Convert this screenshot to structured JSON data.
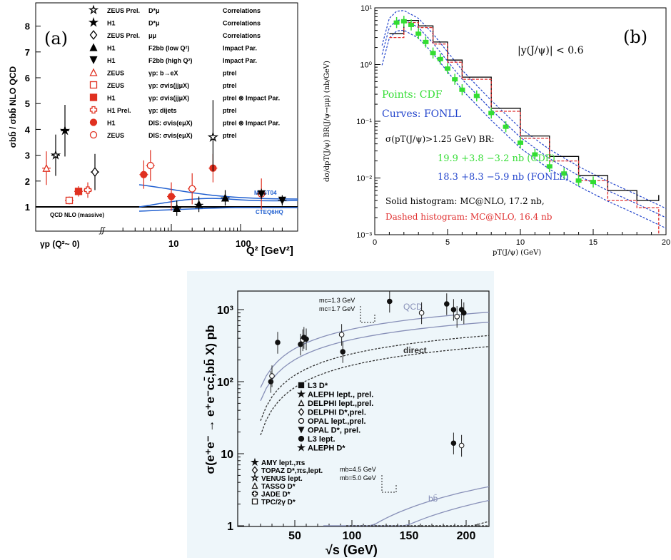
{
  "panel_a": {
    "tag": "(a)",
    "ylabel": "σbb̄ / σbb̄ NLO QCD",
    "xlabel": "Q² [GeV²]",
    "gp_label": "γp (Q²~ 0)",
    "yticks": [
      "1",
      "2",
      "3",
      "4",
      "5",
      "6",
      "7",
      "8"
    ],
    "xticks": [
      "10",
      "100"
    ],
    "curve_labels": {
      "mrst": "MRST04",
      "cteq": "CTEQ6HQ",
      "nlo": "QCD NLO (massive)"
    },
    "legend": [
      {
        "exp": "ZEUS Prel.",
        "chan": "D*μ",
        "method": "Correlations",
        "marker": "star-open",
        "color": "#000000"
      },
      {
        "exp": "H1",
        "chan": "D*μ",
        "method": "Correlations",
        "marker": "star",
        "color": "#000000"
      },
      {
        "exp": "ZEUS Prel.",
        "chan": "μμ",
        "method": "Correlations",
        "marker": "diamond-open",
        "color": "#000000"
      },
      {
        "exp": "H1",
        "chan": "F2bb (low Q²)",
        "method": "Impact Par.",
        "marker": "triangle",
        "color": "#000000"
      },
      {
        "exp": "H1",
        "chan": "F2bb (high Q²)",
        "method": "Impact Par.",
        "marker": "triangle-down",
        "color": "#000000"
      },
      {
        "exp": "ZEUS",
        "chan": "γp: b→eX",
        "method": "ptrel",
        "marker": "triangle-open",
        "color": "#e03020"
      },
      {
        "exp": "ZEUS",
        "chan": "γp: σvis(jjμX)",
        "method": "ptrel",
        "marker": "square-open",
        "color": "#e03020"
      },
      {
        "exp": "H1",
        "chan": "γp: σvis(jjμX)",
        "method": "ptrel ⊗ Impact Par.",
        "marker": "square",
        "color": "#e03020"
      },
      {
        "exp": "H1 Prel.",
        "chan": "γp: dijets",
        "method": "ptrel",
        "marker": "cross-open",
        "color": "#e03020"
      },
      {
        "exp": "H1",
        "chan": "DIS: σvis(eμX)",
        "method": "ptrel ⊗ Impact Par.",
        "marker": "circle",
        "color": "#e03020"
      },
      {
        "exp": "ZEUS",
        "chan": "DIS: σvis(eμX)",
        "method": "ptrel",
        "marker": "circle-open",
        "color": "#e03020"
      }
    ]
  },
  "panel_b": {
    "tag": "(b)",
    "ylabel": "dσ/dpT(J/ψ) BR(J/ψ→μμ) (nb/GeV)",
    "xlabel": "pT(J/ψ) (GeV)",
    "ann_rap": "|y(J/ψ)| < 0.6",
    "ann_points": "Points: CDF",
    "ann_curves": "Curves: FONLL",
    "ann_sigma": "σ(pT(J/ψ)>1.25 GeV) BR:",
    "ann_cdf": "19.9 +3.8 −3.2 nb (CDF)",
    "ann_fonll": "18.3 +8.3 −5.9 nb (FONLL)",
    "ann_solid": "Solid histogram: MC@NLO, 17.2 nb,",
    "ann_dashed": "Dashed histogram: MC@NLO, 16.4 nb",
    "xticks": [
      "0",
      "5",
      "10",
      "15",
      "20"
    ],
    "yticks": [
      "10⁻³",
      "10⁻²",
      "10⁻¹",
      "10⁰",
      "10¹"
    ],
    "colors": {
      "points": "#33dd33",
      "curves": "#2244cc",
      "dashed": "#e03030"
    }
  },
  "panel_c": {
    "ylabel": "σ(e⁺e⁻ → e⁺e⁻cc̄,bb̄ X) pb",
    "xlabel": "√s (GeV)",
    "xticks": [
      "50",
      "100",
      "150",
      "200"
    ],
    "yticks": [
      "1",
      "10",
      "10²",
      "10³"
    ],
    "curve_labels": {
      "qcd": "QCD",
      "direct": "direct",
      "bb": "bb̄",
      "mc1": "mc=1.3 GeV",
      "mc2": "mc=1.7 GeV",
      "mb1": "mb=4.5 GeV",
      "mb2": "mb=5.0 GeV"
    },
    "legend_top": [
      "L3 D*",
      "ALEPH lept., prel.",
      "DELPHI lept.,prel.",
      "DELPHI D*,prel.",
      "OPAL lept.,prel.",
      "OPAL D*, prel.",
      "L3 lept.",
      "ALEPH D*"
    ],
    "legend_bottom": [
      "AMY lept.,πs",
      "TOPAZ D*,πs,lept.",
      "VENUS lept.",
      "TASSO D*",
      "JADE D*",
      "TPC/2γ D*"
    ],
    "bg": "#f0f7fb"
  },
  "chart_data": [
    {
      "type": "scatter",
      "title": "",
      "xlabel": "Q² [GeV²]",
      "ylabel": "σbb̄ / σbb̄ NLO QCD",
      "xscale": "log",
      "ylim": [
        0,
        9
      ],
      "series": [
        {
          "name": "ZEUS Prel. D*μ Correlations",
          "points": [
            {
              "x": "γp",
              "y": 3.0
            }
          ]
        },
        {
          "name": "H1 D*μ Correlations",
          "points": [
            {
              "x": "γp",
              "y": 3.95
            }
          ]
        },
        {
          "name": "ZEUS Prel. μμ Correlations",
          "points": [
            {
              "x": "γp",
              "y": 2.35
            }
          ]
        },
        {
          "name": "ZEUS γp: b→eX",
          "points": [
            {
              "x": "γp",
              "y": 2.5
            }
          ]
        },
        {
          "name": "ZEUS γp: σvis(jjμX)",
          "points": [
            {
              "x": "γp",
              "y": 1.25
            }
          ]
        },
        {
          "name": "H1 γp: σvis(jjμX)",
          "points": [
            {
              "x": "γp",
              "y": 1.6
            }
          ]
        },
        {
          "name": "H1 Prel. γp: dijets",
          "points": [
            {
              "x": "γp",
              "y": 1.65
            }
          ]
        },
        {
          "name": "H1 DIS: σvis(eμX)",
          "points": [
            {
              "x": 4,
              "y": 2.25
            },
            {
              "x": 10,
              "y": 1.4
            },
            {
              "x": 40,
              "y": 2.5
            }
          ]
        },
        {
          "name": "ZEUS DIS: σvis(eμX)",
          "points": [
            {
              "x": 5,
              "y": 2.6
            },
            {
              "x": 20,
              "y": 1.7
            },
            {
              "x": 200,
              "y": 1.5
            }
          ]
        },
        {
          "name": "H1 F2bb (low Q²)",
          "points": [
            {
              "x": 12,
              "y": 0.95
            },
            {
              "x": 25,
              "y": 1.1
            },
            {
              "x": 60,
              "y": 1.35
            }
          ]
        },
        {
          "name": "H1 F2bb (high Q²)",
          "points": [
            {
              "x": 200,
              "y": 1.5
            },
            {
              "x": 400,
              "y": 1.25
            }
          ]
        }
      ]
    },
    {
      "type": "line",
      "xlabel": "pT(J/ψ) (GeV)",
      "ylabel": "dσ/dpT(J/ψ) BR(J/ψ→μμ) (nb/GeV)",
      "xlim": [
        0,
        20
      ],
      "ylim": [
        0.001,
        10
      ],
      "yscale": "log",
      "series": [
        {
          "name": "Points: CDF",
          "x": [
            1.5,
            2,
            2.5,
            3,
            3.5,
            4,
            4.5,
            5,
            5.5,
            6,
            7,
            8,
            9,
            10,
            11,
            12,
            13,
            14,
            15
          ],
          "y": [
            5.5,
            5.8,
            5.0,
            3.5,
            2.5,
            1.6,
            1.25,
            0.85,
            0.55,
            0.36,
            0.28,
            0.14,
            0.08,
            0.042,
            0.026,
            0.016,
            0.012,
            0.009,
            0.0085
          ]
        },
        {
          "name": "Curves: FONLL",
          "x": [
            0.5,
            1,
            1.5,
            2,
            3,
            4,
            5,
            6,
            8,
            10,
            12,
            14,
            16,
            18,
            20
          ],
          "y": [
            1.5,
            4.5,
            6.0,
            6.2,
            4.5,
            2.4,
            1.15,
            0.55,
            0.16,
            0.052,
            0.022,
            0.011,
            0.006,
            0.0035,
            0.002
          ]
        },
        {
          "name": "Solid histogram: MC@NLO, 17.2 nb,",
          "x": [
            1,
            2,
            3,
            4,
            5,
            6,
            8,
            10,
            12,
            14,
            16,
            18,
            19.5
          ],
          "y": [
            3.5,
            6.0,
            4.8,
            2.5,
            1.2,
            0.6,
            0.17,
            0.055,
            0.024,
            0.011,
            0.006,
            0.004,
            0.005
          ]
        },
        {
          "name": "Dashed histogram: MC@NLO, 16.4 nb",
          "x": [
            1,
            2,
            3,
            4,
            5,
            6,
            8,
            10,
            12,
            14,
            16,
            18,
            19.5
          ],
          "y": [
            3.0,
            5.5,
            4.5,
            2.3,
            1.1,
            0.55,
            0.15,
            0.05,
            0.02,
            0.009,
            0.004,
            0.003,
            0.001
          ]
        }
      ]
    },
    {
      "type": "scatter",
      "xlabel": "√s (GeV)",
      "ylabel": "σ(e⁺e⁻ → e⁺e⁻cc̄,bb̄ X) pb",
      "xlim": [
        0,
        220
      ],
      "ylim": [
        1,
        2000
      ],
      "yscale": "log",
      "series": [
        {
          "name": "cc̄ data",
          "x": [
            29,
            30,
            35,
            55,
            57,
            58,
            60,
            91,
            92,
            133,
            161,
            183,
            189,
            192,
            196,
            198
          ],
          "y": [
            100,
            120,
            350,
            330,
            380,
            410,
            390,
            450,
            260,
            1300,
            900,
            1200,
            1000,
            800,
            1000,
            900
          ]
        },
        {
          "name": "bb̄ data",
          "x": [
            189,
            196
          ],
          "y": [
            14,
            13
          ]
        }
      ]
    }
  ]
}
